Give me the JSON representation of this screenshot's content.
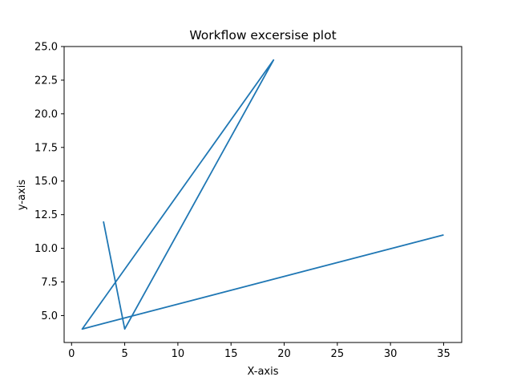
{
  "chart_data": {
    "type": "line",
    "title": "Workflow excersise plot",
    "xlabel": "X-axis",
    "ylabel": "y-axis",
    "xlim": [
      -0.7,
      36.7
    ],
    "ylim": [
      3.0,
      25.0
    ],
    "xticks": [
      0,
      5,
      10,
      15,
      20,
      25,
      30,
      35
    ],
    "xtick_labels": [
      "0",
      "5",
      "10",
      "15",
      "20",
      "25",
      "30",
      "35"
    ],
    "yticks": [
      5.0,
      7.5,
      10.0,
      12.5,
      15.0,
      17.5,
      20.0,
      22.5,
      25.0
    ],
    "ytick_labels": [
      "5.0",
      "7.5",
      "10.0",
      "12.5",
      "15.0",
      "17.5",
      "20.0",
      "22.5",
      "25.0"
    ],
    "grid": false,
    "series": [
      {
        "x": [
          3,
          5,
          19,
          1,
          35
        ],
        "y": [
          12,
          4,
          24,
          4,
          11
        ],
        "color": "#1f77b4"
      }
    ]
  }
}
